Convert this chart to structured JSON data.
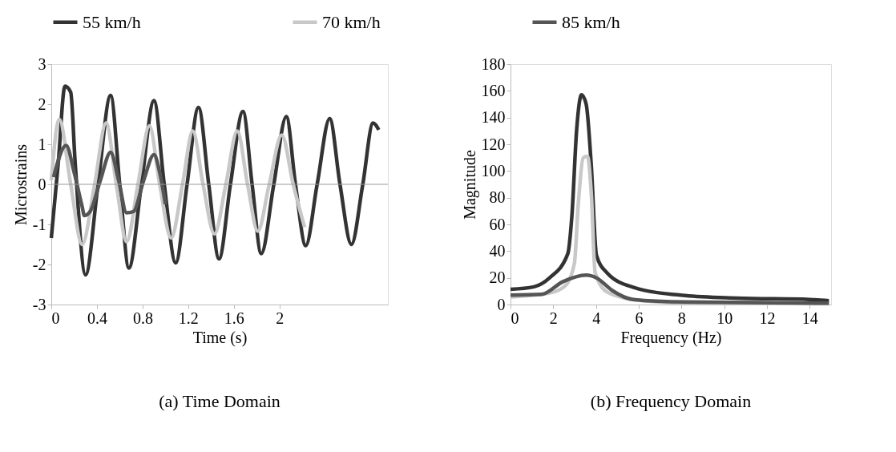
{
  "chart_data": [
    {
      "type": "line",
      "xlabel": "Time (s)",
      "ylabel": "Microstrains",
      "annotations": [
        "(a) Time Domain"
      ],
      "xlim": [
        0,
        2.95
      ],
      "xticks": [
        0,
        0.4,
        0.8,
        1.2,
        1.6,
        2
      ],
      "ylim": [
        -3,
        3
      ],
      "yticks": [
        -3,
        -2,
        -1,
        0,
        1,
        2,
        3
      ],
      "grid": false,
      "legend": "top",
      "ref_lines": [
        {
          "axis": "y",
          "value": 0,
          "color": "#999999"
        }
      ],
      "series": [
        {
          "name": "55 km/h",
          "color": "#333333",
          "x": [
            0,
            0.06,
            0.12,
            0.17,
            0.21,
            0.3,
            0.41,
            0.52,
            0.6,
            0.68,
            0.79,
            0.9,
            0.99,
            1.09,
            1.19,
            1.29,
            1.38,
            1.47,
            1.57,
            1.68,
            1.76,
            1.84,
            1.95,
            2.06,
            2.14,
            2.23,
            2.33,
            2.44,
            2.53,
            2.63,
            2.73,
            2.82,
            2.87
          ],
          "values": [
            -1.34,
            0.5,
            2.45,
            2.3,
            0.5,
            -2.26,
            0,
            2.22,
            0,
            -2.09,
            0,
            2.09,
            0,
            -1.96,
            0,
            1.92,
            0,
            -1.86,
            0,
            1.82,
            0,
            -1.73,
            0,
            1.69,
            0,
            -1.53,
            0,
            1.64,
            0,
            -1.5,
            0,
            1.53,
            1.36
          ]
        },
        {
          "name": "70 km/h",
          "color": "#c8c8c8",
          "x": [
            0,
            0.07,
            0.17,
            0.27,
            0.38,
            0.48,
            0.57,
            0.66,
            0.76,
            0.86,
            0.95,
            1.05,
            1.15,
            1.24,
            1.33,
            1.43,
            1.53,
            1.63,
            1.72,
            1.81,
            1.91,
            2.02,
            2.12,
            2.22
          ],
          "values": [
            0.1,
            1.62,
            0,
            -1.5,
            0,
            1.53,
            0,
            -1.43,
            0,
            1.46,
            0,
            -1.34,
            0,
            1.33,
            0,
            -1.24,
            0,
            1.33,
            0,
            -1.17,
            0,
            1.23,
            0,
            -1.07
          ]
        },
        {
          "name": "85 km/h",
          "color": "#555555",
          "x": [
            0.02,
            0.13,
            0.2,
            0.27,
            0.29,
            0.34,
            0.43,
            0.52,
            0.59,
            0.66,
            0.72,
            0.81,
            0.9,
            0.95,
            1.0
          ],
          "values": [
            0.18,
            0.97,
            0.3,
            -0.55,
            -0.78,
            -0.68,
            0.1,
            0.8,
            0.1,
            -0.71,
            -0.68,
            0.1,
            0.74,
            0.3,
            -0.5
          ]
        }
      ]
    },
    {
      "type": "line",
      "xlabel": "Frequency (Hz)",
      "ylabel": "Magnitude",
      "annotations": [
        "(b) Frequency Domain"
      ],
      "xlim": [
        0,
        15
      ],
      "xticks": [
        0,
        2,
        4,
        6,
        8,
        10,
        12,
        14
      ],
      "ylim": [
        0,
        180
      ],
      "yticks": [
        0,
        20,
        40,
        60,
        80,
        100,
        120,
        140,
        160,
        180
      ],
      "grid": false,
      "legend": "top",
      "series": [
        {
          "name": "55 km/h",
          "color": "#333333",
          "x": [
            0,
            1.1,
            1.83,
            2.68,
            2.87,
            3.1,
            3.32,
            3.54,
            3.78,
            4.02,
            4.5,
            5.73,
            8.17,
            10.6,
            14.0,
            14.9
          ],
          "values": [
            11.4,
            13.3,
            20,
            38,
            66,
            132,
            157,
            150,
            104,
            37,
            24,
            13,
            6.7,
            4.8,
            3.8,
            2.9
          ]
        },
        {
          "name": "70 km/h",
          "color": "#c8c8c8",
          "x": [
            0,
            1.83,
            2.56,
            2.99,
            3.17,
            3.41,
            3.6,
            3.78,
            3.96,
            4.51,
            5.73,
            8.2,
            14.9
          ],
          "values": [
            5.7,
            8.6,
            14,
            31,
            75,
            110,
            111,
            83,
            24,
            9.5,
            3.8,
            1.3,
            0.6
          ]
        },
        {
          "name": "85 km/h",
          "color": "#555555",
          "x": [
            0,
            1.46,
            2.44,
            3.54,
            4.02,
            4.76,
            5.73,
            8.2,
            14.9
          ],
          "values": [
            7,
            7.6,
            17,
            22,
            20,
            10.5,
            3.8,
            1.9,
            1
          ]
        }
      ]
    }
  ]
}
